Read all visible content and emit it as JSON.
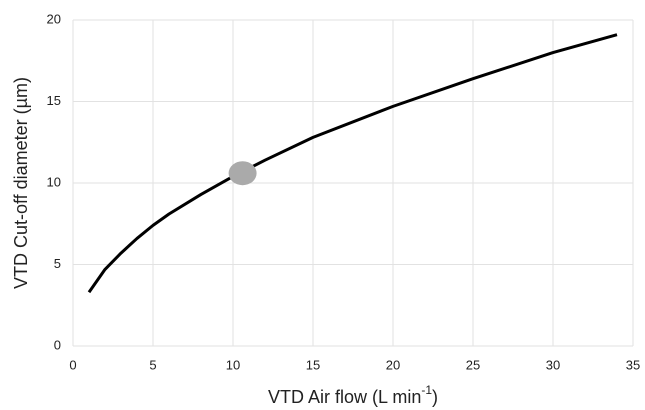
{
  "chart_data": {
    "type": "line",
    "x_label": [
      "VTD Air flow (L min",
      "-1",
      ")"
    ],
    "y_label": "VTD Cut-off diameter (µm)",
    "x": [
      1,
      2,
      3,
      4,
      5,
      6,
      8,
      10,
      12,
      15,
      20,
      25,
      30,
      34
    ],
    "values": [
      3.3,
      4.7,
      5.7,
      6.6,
      7.4,
      8.1,
      9.3,
      10.4,
      11.4,
      12.8,
      14.7,
      16.4,
      18.0,
      19.1
    ],
    "color": "#000000",
    "highlight": {
      "x": 10.6,
      "y": 10.6,
      "color": "#aaaaaa"
    },
    "xlim": [
      0,
      35
    ],
    "xticks": [
      0,
      5,
      10,
      15,
      20,
      25,
      30,
      35
    ],
    "ylim": [
      0,
      20
    ],
    "yticks": [
      0,
      5,
      10,
      15,
      20
    ],
    "grid": true
  }
}
